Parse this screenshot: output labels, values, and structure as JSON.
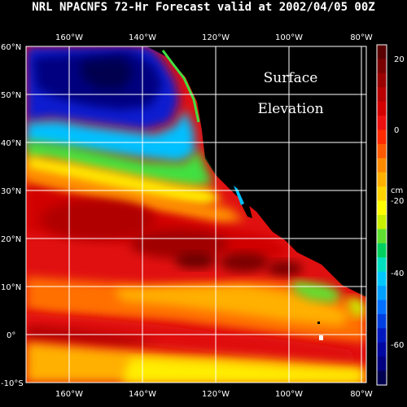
{
  "title": "NRL NPACNFS 72-Hr Forecast valid at 2002/04/05 00Z",
  "annotation": {
    "line1": "Surface",
    "line2": "Elevation"
  },
  "map": {
    "lon_labels": [
      "160°W",
      "140°W",
      "120°W",
      "100°W",
      "80°W"
    ],
    "lat_labels": [
      "60°N",
      "50°N",
      "40°N",
      "30°N",
      "20°N",
      "10°N",
      "0°",
      "-10°S"
    ]
  },
  "colorbar": {
    "unit": "cm",
    "tick_labels": [
      "20",
      "0",
      "-20",
      "-40",
      "-60"
    ],
    "colors_top_to_bottom": [
      "#5a0000",
      "#7a0000",
      "#9a0000",
      "#b80000",
      "#d40000",
      "#ee1010",
      "#ff2a00",
      "#ff5a00",
      "#ff8a00",
      "#ffb000",
      "#ffd400",
      "#ffff00",
      "#c8f000",
      "#60e030",
      "#00d060",
      "#00e0c0",
      "#00c8ff",
      "#00a0ff",
      "#0070ff",
      "#0040e0",
      "#0018c0",
      "#0008a0",
      "#000080",
      "#000050"
    ]
  },
  "chart_data": {
    "type": "heatmap",
    "title": "NRL NPACNFS 72-Hr Forecast valid at 2002/04/05 00Z",
    "xlabel": "",
    "ylabel": "",
    "x_range": [
      -170,
      -78
    ],
    "y_range": [
      -10,
      60
    ],
    "x_ticks": [
      -160,
      -140,
      -120,
      -100,
      -80
    ],
    "y_ticks": [
      60,
      50,
      40,
      30,
      20,
      10,
      0,
      -10
    ],
    "colorbar_range_cm": [
      -70,
      25
    ],
    "colorbar_ticks": [
      20,
      0,
      -20,
      -40,
      -60
    ],
    "grid": true
  }
}
